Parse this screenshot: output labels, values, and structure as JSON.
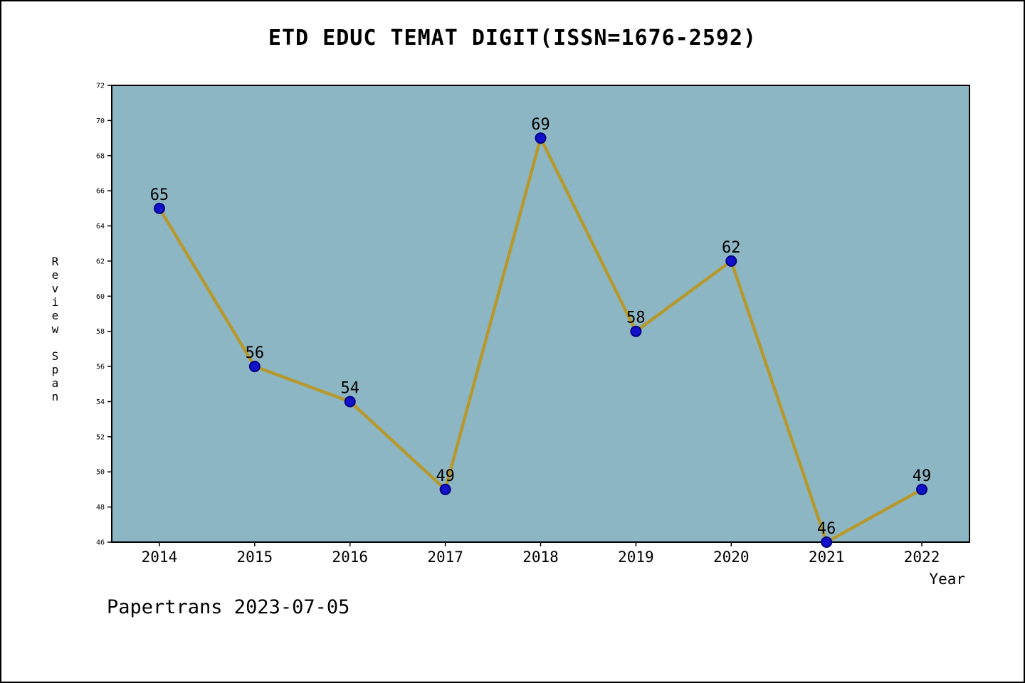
{
  "title": "ETD EDUC TEMAT DIGIT(ISSN=1676-2592)",
  "footer": "Papertrans 2023-07-05",
  "chart_data": {
    "type": "line",
    "title": "ETD EDUC TEMAT DIGIT(ISSN=1676-2592)",
    "xlabel": "Year",
    "ylabel": "Review Span",
    "categories": [
      "2014",
      "2015",
      "2016",
      "2017",
      "2018",
      "2019",
      "2020",
      "2021",
      "2022"
    ],
    "values": [
      65,
      56,
      54,
      49,
      69,
      58,
      62,
      46,
      49
    ],
    "ylim": [
      46,
      72
    ],
    "ytick_step": 2,
    "grid": false,
    "legend": "none",
    "colors": {
      "plot_bg": "#8db6c4",
      "line": "#b5992e",
      "marker_fill": "#1111cc",
      "marker_edge": "#000080",
      "axis": "#000000",
      "text": "#000000"
    }
  }
}
